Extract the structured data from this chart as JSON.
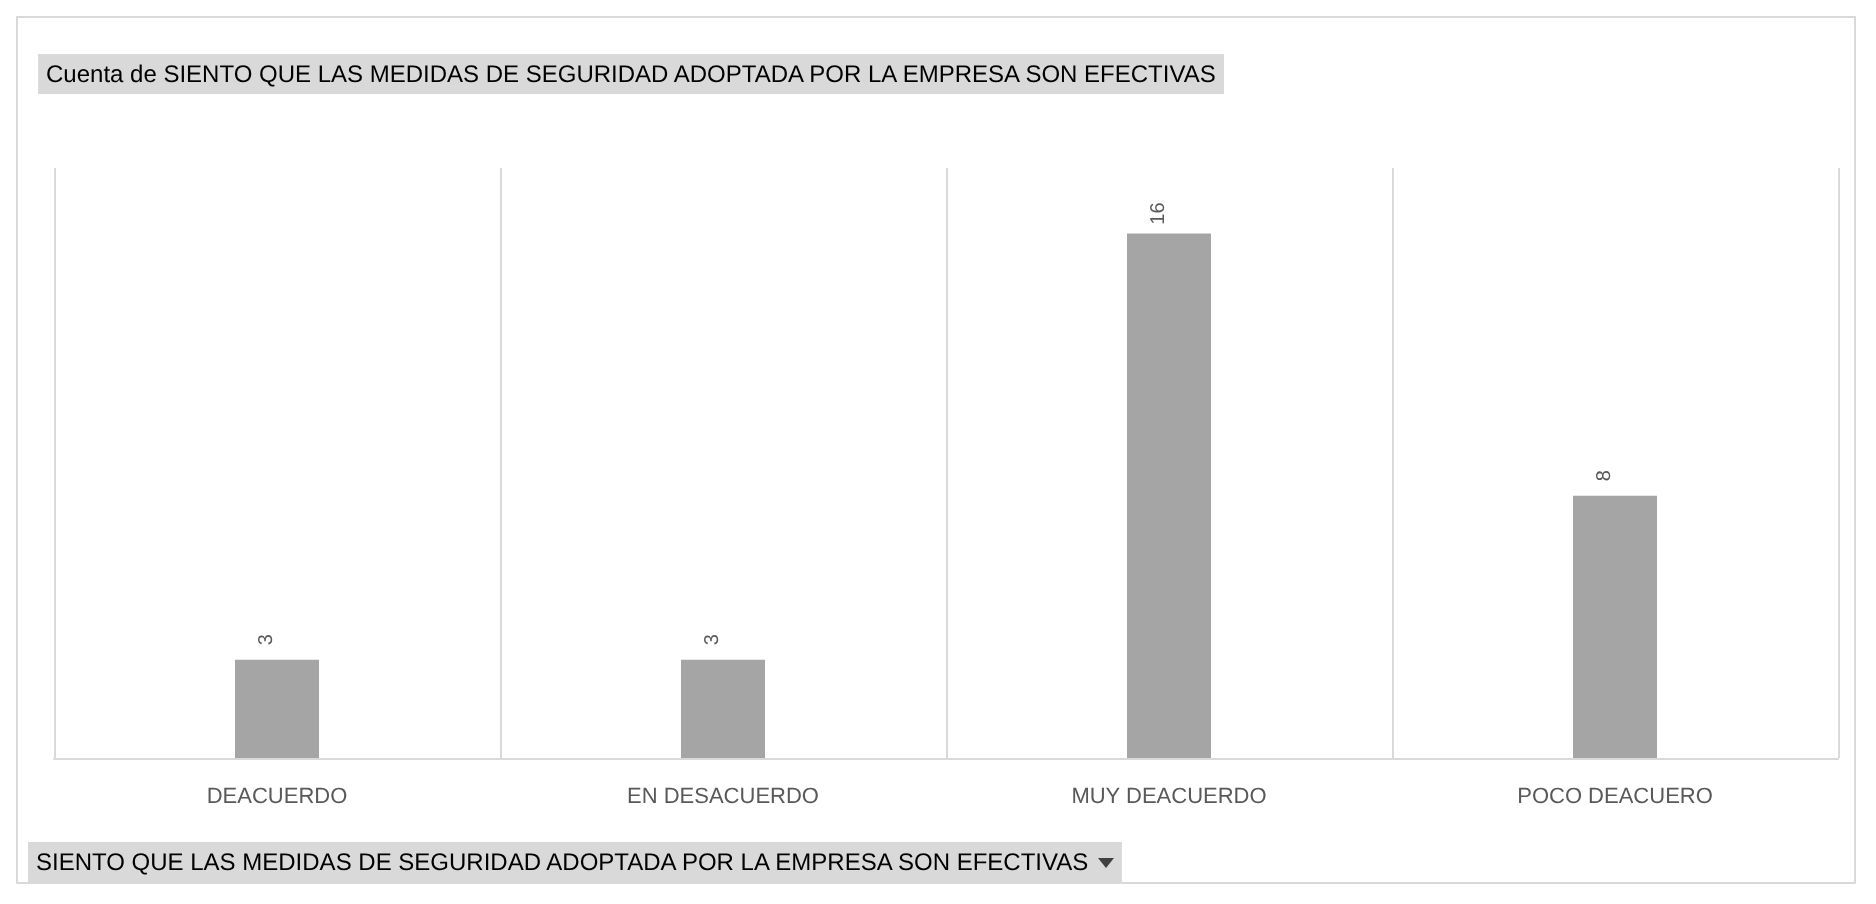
{
  "chart_data": {
    "type": "bar",
    "title": "Cuenta de SIENTO QUE LAS MEDIDAS DE SEGURIDAD ADOPTADA POR LA EMPRESA SON EFECTIVAS",
    "xlabel": "SIENTO QUE LAS MEDIDAS DE SEGURIDAD ADOPTADA POR LA EMPRESA SON EFECTIVAS",
    "categories": [
      "DEACUERDO",
      "EN DESACUERDO",
      "MUY DEACUERDO",
      "POCO DEACUERO"
    ],
    "values": [
      3,
      3,
      16,
      8
    ],
    "color": "#a5a5a5",
    "data_labels": true,
    "grid": "x"
  }
}
